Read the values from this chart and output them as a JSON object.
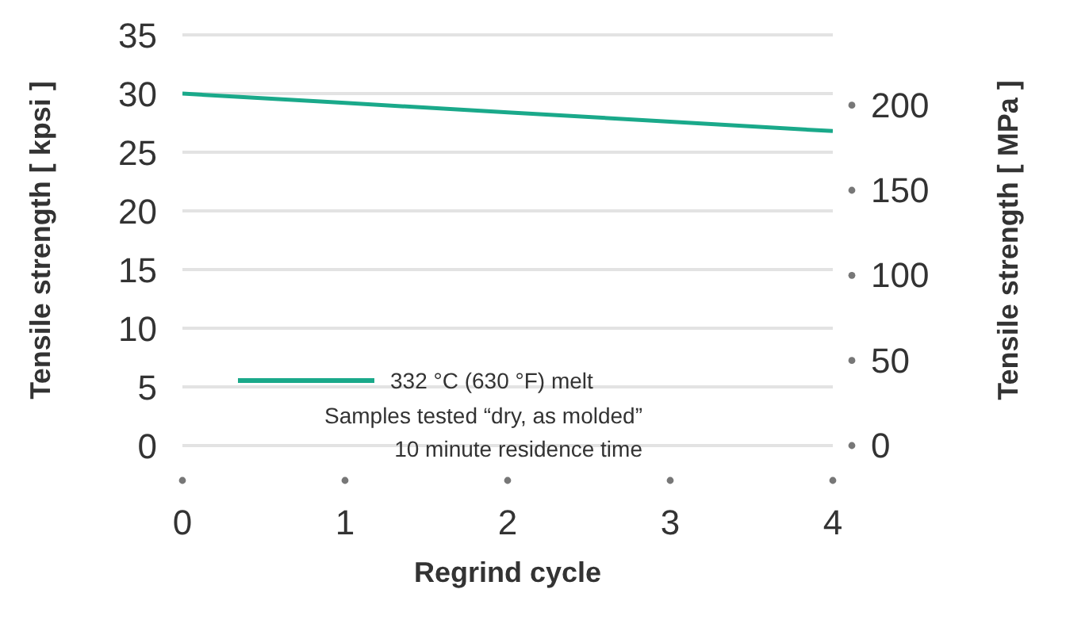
{
  "chart_data": {
    "type": "line",
    "xlabel": "Regrind cycle",
    "ylabel": "Tensile strength [ kpsi ]",
    "y2label": "Tensile strength [ MPa ]",
    "x": [
      0,
      1,
      2,
      3,
      4
    ],
    "xlim": [
      0,
      4
    ],
    "xticks": [
      0,
      1,
      2,
      3,
      4
    ],
    "ylim": [
      0,
      35
    ],
    "yticks": [
      0,
      5,
      10,
      15,
      20,
      25,
      30,
      35
    ],
    "y2lim": [
      0,
      241.3
    ],
    "y2ticks": [
      0,
      50,
      100,
      150,
      200
    ],
    "series": [
      {
        "name": "332 °C (630 °F) melt",
        "color": "#1aa98a",
        "values": [
          30,
          29.2,
          28.4,
          27.6,
          26.8
        ]
      }
    ],
    "annotations": [
      "Samples tested “dry, as molded”",
      "10 minute residence time"
    ],
    "grid": "y",
    "legend": "bottom left",
    "marker": "none",
    "line_style": "solid"
  }
}
